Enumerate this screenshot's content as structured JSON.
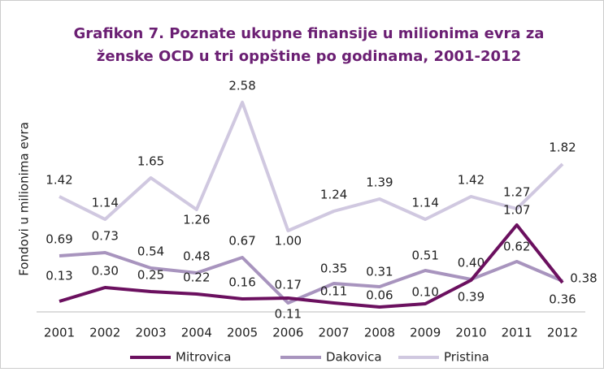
{
  "chart_data": {
    "type": "line",
    "title": [
      "Grafikon 7. Poznate ukupne finansije u milionima evra za",
      "ženske OCD u tri oppštine po godinama, 2001-2012"
    ],
    "y_label": "Fondovi u milionima evra",
    "categories": [
      "2001",
      "2002",
      "2003",
      "2004",
      "2005",
      "2006",
      "2007",
      "2008",
      "2009",
      "2010",
      "2011",
      "2012"
    ],
    "ylim": [
      0,
      2.8
    ],
    "legend": "bottom",
    "series": [
      {
        "name": "Mitrovica",
        "color": "#6b105f",
        "values": [
          0.13,
          0.3,
          0.25,
          0.22,
          0.16,
          0.17,
          0.11,
          0.06,
          0.1,
          0.39,
          1.07,
          0.36
        ],
        "value_labels": [
          "0.13",
          "0.30",
          "0.25",
          "0.22",
          "0.16",
          "0.17",
          "0.11",
          "0.06",
          "0.10",
          "0.39",
          "1.07",
          "0.36"
        ]
      },
      {
        "name": "Dakovica",
        "color": "#a894be",
        "values": [
          0.69,
          0.73,
          0.54,
          0.48,
          0.67,
          0.11,
          0.35,
          0.31,
          0.51,
          0.4,
          0.62,
          0.38
        ],
        "value_labels": [
          "0.69",
          "0.73",
          "0.54",
          "0.48",
          "0.67",
          "0.11",
          "0.35",
          "0.31",
          "0.51",
          "0.40",
          "0.62",
          "0.38"
        ]
      },
      {
        "name": "Pristina",
        "color": "#d0c8e0",
        "values": [
          1.42,
          1.14,
          1.65,
          1.26,
          2.58,
          1.0,
          1.24,
          1.39,
          1.14,
          1.42,
          1.27,
          1.82
        ],
        "value_labels": [
          "1.42",
          "1.14",
          "1.65",
          "1.26",
          "2.58",
          "1.00",
          "1.24",
          "1.39",
          "1.14",
          "1.42",
          "1.27",
          "1.82"
        ]
      }
    ]
  }
}
